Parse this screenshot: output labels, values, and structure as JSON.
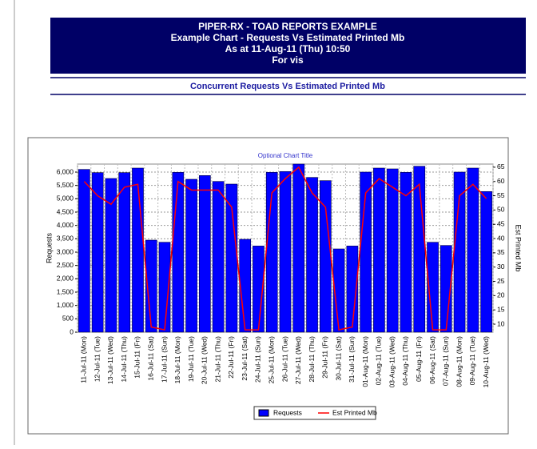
{
  "header": {
    "lines": [
      "PIPER-RX - TOAD REPORTS EXAMPLE",
      "Example Chart - Requests Vs Estimated Printed Mb",
      "As at 11-Aug-11 (Thu) 10:50",
      "For vis"
    ]
  },
  "subtitle": "Concurrent Requests Vs Estimated Printed Mb",
  "chart_data": {
    "type": "bar_line",
    "title": "Optional Chart Title",
    "y_label": "Requests",
    "y2_label": "Est Printed Mb",
    "categories": [
      "11-Jul-11 (Mon)",
      "12-Jul-11 (Tue)",
      "13-Jul-11 (Wed)",
      "14-Jul-11 (Thu)",
      "15-Jul-11 (Fri)",
      "16-Jul-11 (Sat)",
      "17-Jul-11 (Sun)",
      "18-Jul-11 (Mon)",
      "19-Jul-11 (Tue)",
      "20-Jul-11 (Wed)",
      "21-Jul-11 (Thu)",
      "22-Jul-11 (Fri)",
      "23-Jul-11 (Sat)",
      "24-Jul-11 (Sun)",
      "25-Jul-11 (Mon)",
      "26-Jul-11 (Tue)",
      "27-Jul-11 (Wed)",
      "28-Jul-11 (Thu)",
      "29-Jul-11 (Fri)",
      "30-Jul-11 (Sat)",
      "31-Jul-11 (Sun)",
      "01-Aug-11 (Mon)",
      "02-Aug-11 (Tue)",
      "03-Aug-11 (Wed)",
      "04-Aug-11 (Thu)",
      "05-Aug-11 (Fri)",
      "06-Aug-11 (Sat)",
      "07-Aug-11 (Sun)",
      "08-Aug-11 (Mon)",
      "09-Aug-11 (Tue)",
      "10-Aug-11 (Wed)"
    ],
    "series": [
      {
        "name": "Requests",
        "color": "#0000ff",
        "values": [
          6100,
          5980,
          5760,
          5980,
          6150,
          3450,
          3370,
          5990,
          5730,
          5870,
          5650,
          5550,
          3480,
          3230,
          5990,
          6020,
          6300,
          5800,
          5680,
          3120,
          3230,
          6000,
          6150,
          6120,
          5990,
          6220,
          3370,
          3250,
          6000,
          6150,
          5270
        ]
      },
      {
        "name": "Est Printed Mb",
        "color": "#ff0000",
        "axis": "y2",
        "values": [
          60,
          55,
          52,
          58,
          59,
          9,
          8,
          60,
          57,
          57,
          57,
          51,
          8,
          8,
          56,
          61,
          65,
          56,
          51,
          8,
          9,
          56,
          61,
          58,
          55,
          59,
          8,
          8,
          55,
          59,
          54
        ]
      }
    ],
    "ylim": [
      0,
      6300
    ],
    "yticks": [
      0,
      500,
      {
        "value": 1000,
        "label": "1,000"
      },
      {
        "value": 1500,
        "label": "1,500"
      },
      {
        "value": 2000,
        "label": "2,000"
      },
      {
        "value": 2500,
        "label": "2,500"
      },
      {
        "value": 3000,
        "label": "3,000"
      },
      {
        "value": 3500,
        "label": "3,500"
      },
      {
        "value": 4000,
        "label": "4,000"
      },
      {
        "value": 4500,
        "label": "4,500"
      },
      {
        "value": 5000,
        "label": "5,000"
      },
      {
        "value": 5500,
        "label": "5,500"
      },
      {
        "value": 6000,
        "label": "6,000"
      }
    ],
    "y2lim": [
      7.2,
      66.1
    ],
    "y2ticks": [
      10,
      15,
      20,
      25,
      30,
      35,
      40,
      45,
      50,
      55,
      60,
      65
    ],
    "grid": true,
    "legend": "bottom"
  }
}
